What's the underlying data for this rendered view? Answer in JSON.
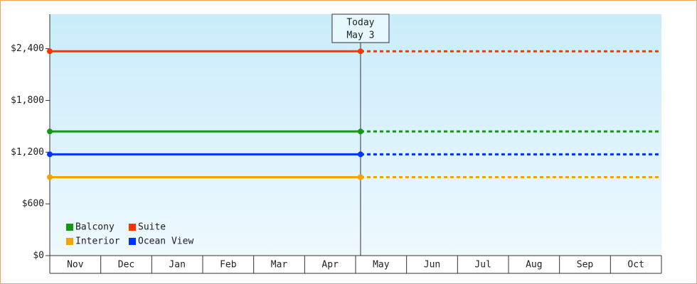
{
  "chart_data": {
    "type": "line",
    "categories": [
      "Nov",
      "Dec",
      "Jan",
      "Feb",
      "Mar",
      "Apr",
      "May",
      "Jun",
      "Jul",
      "Aug",
      "Sep",
      "Oct"
    ],
    "today_label": [
      "Today",
      "May 3"
    ],
    "ylim": [
      0,
      2800
    ],
    "yticks": [
      {
        "value": 0,
        "label": "$0"
      },
      {
        "value": 600,
        "label": "$600"
      },
      {
        "value": 1200,
        "label": "$1,200"
      },
      {
        "value": 1800,
        "label": "$1,800"
      },
      {
        "value": 2400,
        "label": "$2,400"
      }
    ],
    "series": [
      {
        "name": "Balcony",
        "color": "#119911",
        "value": 1440
      },
      {
        "name": "Suite",
        "color": "#ff3300",
        "value": 2370
      },
      {
        "name": "Interior",
        "color": "#f5a300",
        "value": 910
      },
      {
        "name": "Ocean View",
        "color": "#0033ff",
        "value": 1175
      }
    ]
  }
}
